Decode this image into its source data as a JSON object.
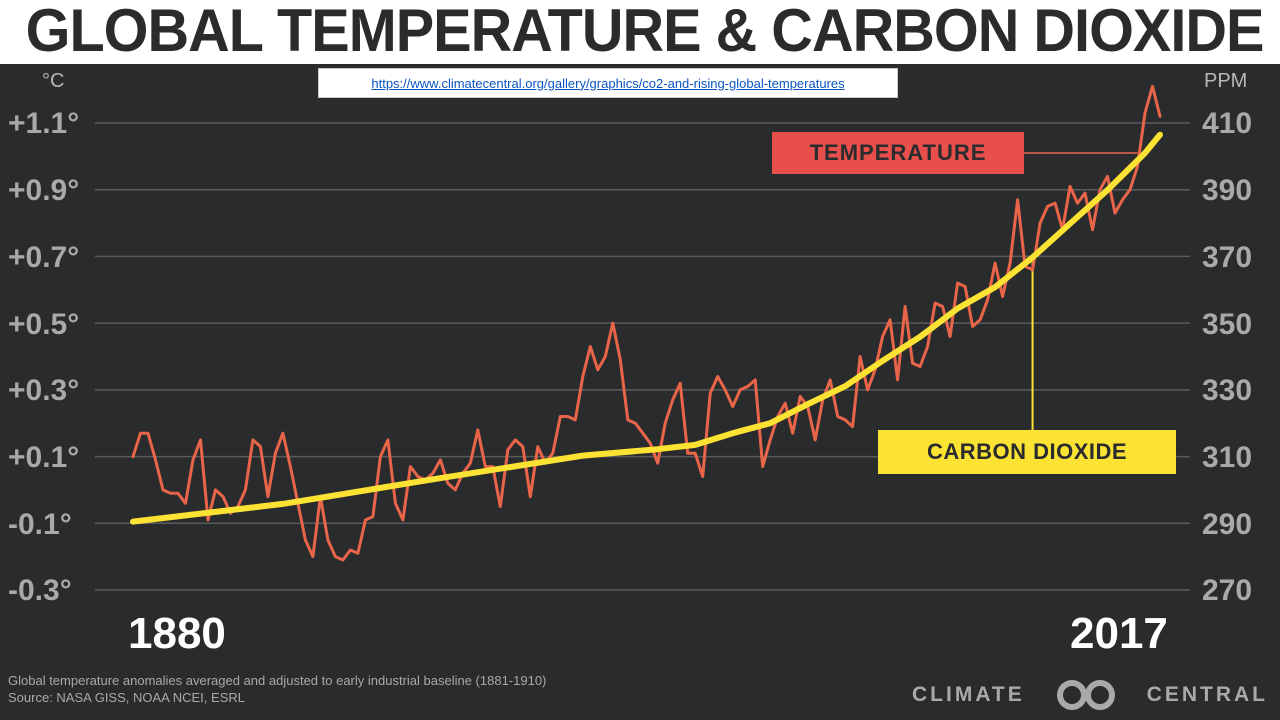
{
  "title": "GLOBAL TEMPERATURE & CARBON DIOXIDE",
  "url": "https://www.climatecentral.org/gallery/graphics/co2-and-rising-global-temperatures",
  "footnote": {
    "line1": "Global temperature anomalies averaged and adjusted to early industrial baseline (1881-1910)",
    "line2": "Source: NASA GISS, NOAA NCEI, ESRL"
  },
  "brand": {
    "left": "CLIMATE",
    "right": "CENTRAL"
  },
  "colors": {
    "temperature": "#e9654a",
    "co2": "#fbe233",
    "background": "#2a2b2d",
    "grid": "#5a5b5d"
  },
  "chart_data": {
    "type": "line",
    "title": "GLOBAL TEMPERATURE & CARBON DIOXIDE",
    "y_left_unit": "°C",
    "y_right_unit": "PPM",
    "y_left_ticks": [
      "+1.1°",
      "+0.9°",
      "+0.7°",
      "+0.5°",
      "+0.3°",
      "+0.1°",
      "-0.1°",
      "-0.3°"
    ],
    "y_right_ticks": [
      "410",
      "390",
      "370",
      "350",
      "330",
      "310",
      "290",
      "270"
    ],
    "y_left_range": [
      -0.3,
      1.1
    ],
    "y_right_range": [
      270,
      410
    ],
    "x_range": [
      1880,
      2017
    ],
    "x_labels": {
      "start": "1880",
      "end": "2017"
    },
    "grid": true,
    "series": [
      {
        "name": "TEMPERATURE",
        "axis": "left",
        "x": [
          1880,
          1881,
          1882,
          1883,
          1884,
          1885,
          1886,
          1887,
          1888,
          1889,
          1890,
          1891,
          1892,
          1893,
          1894,
          1895,
          1896,
          1897,
          1898,
          1899,
          1900,
          1901,
          1902,
          1903,
          1904,
          1905,
          1906,
          1907,
          1908,
          1909,
          1910,
          1911,
          1912,
          1913,
          1914,
          1915,
          1916,
          1917,
          1918,
          1919,
          1920,
          1921,
          1922,
          1923,
          1924,
          1925,
          1926,
          1927,
          1928,
          1929,
          1930,
          1931,
          1932,
          1933,
          1934,
          1935,
          1936,
          1937,
          1938,
          1939,
          1940,
          1941,
          1942,
          1943,
          1944,
          1945,
          1946,
          1947,
          1948,
          1949,
          1950,
          1951,
          1952,
          1953,
          1954,
          1955,
          1956,
          1957,
          1958,
          1959,
          1960,
          1961,
          1962,
          1963,
          1964,
          1965,
          1966,
          1967,
          1968,
          1969,
          1970,
          1971,
          1972,
          1973,
          1974,
          1975,
          1976,
          1977,
          1978,
          1979,
          1980,
          1981,
          1982,
          1983,
          1984,
          1985,
          1986,
          1987,
          1988,
          1989,
          1990,
          1991,
          1992,
          1993,
          1994,
          1995,
          1996,
          1997,
          1998,
          1999,
          2000,
          2001,
          2002,
          2003,
          2004,
          2005,
          2006,
          2007,
          2008,
          2009,
          2010,
          2011,
          2012,
          2013,
          2014,
          2015,
          2016,
          2017
        ],
        "values": [
          0.1,
          0.17,
          0.17,
          0.09,
          0.0,
          -0.01,
          -0.01,
          -0.04,
          0.09,
          0.15,
          -0.09,
          0.0,
          -0.02,
          -0.07,
          -0.05,
          0.0,
          0.15,
          0.13,
          -0.02,
          0.11,
          0.17,
          0.07,
          -0.04,
          -0.15,
          -0.2,
          -0.02,
          -0.15,
          -0.2,
          -0.21,
          -0.18,
          -0.19,
          -0.09,
          -0.08,
          0.1,
          0.15,
          -0.04,
          -0.09,
          0.07,
          0.04,
          0.03,
          0.05,
          0.09,
          0.02,
          0.0,
          0.05,
          0.08,
          0.18,
          0.07,
          0.07,
          -0.05,
          0.12,
          0.15,
          0.13,
          -0.02,
          0.13,
          0.08,
          0.11,
          0.22,
          0.22,
          0.21,
          0.34,
          0.43,
          0.36,
          0.4,
          0.5,
          0.39,
          0.21,
          0.2,
          0.17,
          0.14,
          0.08,
          0.2,
          0.27,
          0.32,
          0.11,
          0.11,
          0.04,
          0.29,
          0.34,
          0.3,
          0.25,
          0.3,
          0.31,
          0.33,
          0.07,
          0.15,
          0.22,
          0.26,
          0.17,
          0.28,
          0.25,
          0.15,
          0.27,
          0.33,
          0.22,
          0.21,
          0.19,
          0.4,
          0.3,
          0.36,
          0.46,
          0.51,
          0.33,
          0.55,
          0.38,
          0.37,
          0.43,
          0.56,
          0.55,
          0.46,
          0.62,
          0.61,
          0.49,
          0.51,
          0.57,
          0.68,
          0.58,
          0.68,
          0.87,
          0.67,
          0.66,
          0.8,
          0.85,
          0.86,
          0.78,
          0.91,
          0.86,
          0.89,
          0.78,
          0.9,
          0.94,
          0.83,
          0.87,
          0.9,
          0.97,
          1.13,
          1.21,
          1.12
        ]
      },
      {
        "name": "CARBON DIOXIDE",
        "axis": "right",
        "x": [
          1880,
          1900,
          1920,
          1940,
          1950,
          1955,
          1960,
          1965,
          1970,
          1975,
          1980,
          1985,
          1990,
          1995,
          2000,
          2005,
          2010,
          2015,
          2017
        ],
        "values": [
          290.5,
          295.8,
          303.2,
          310.3,
          312.2,
          313.5,
          317.0,
          320.0,
          325.7,
          331.1,
          338.7,
          345.9,
          354.4,
          360.8,
          369.7,
          379.8,
          389.9,
          401.0,
          406.5
        ]
      }
    ],
    "annotations": [
      "TEMPERATURE",
      "CARBON DIOXIDE"
    ]
  }
}
